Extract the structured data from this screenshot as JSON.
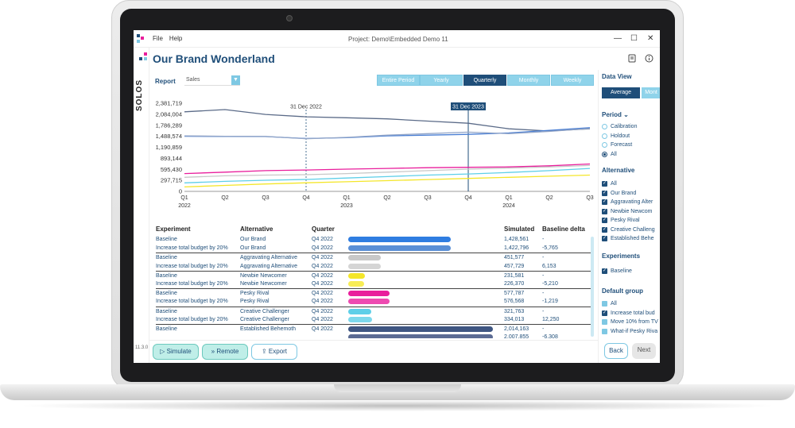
{
  "window": {
    "menu": [
      "File",
      "Help"
    ],
    "title": "Project: Demo\\Embedded Demo 11",
    "minimize": "—",
    "maximize": "☐",
    "close": "✕"
  },
  "brand": {
    "vertical_text": "SOLOS",
    "version": "11.3.0"
  },
  "page": {
    "title": "Our Brand Wonderland",
    "doc_icon": "document-icon",
    "info_icon": "info-icon"
  },
  "report": {
    "label": "Report",
    "value": "Sales"
  },
  "period_tabs": [
    {
      "label": "Entire Period",
      "active": false
    },
    {
      "label": "Yearly",
      "active": false
    },
    {
      "label": "Quarterly",
      "active": true
    },
    {
      "label": "Monthly",
      "active": false
    },
    {
      "label": "Weekly",
      "active": false
    }
  ],
  "chart_data": {
    "type": "line",
    "y_ticks": [
      "2,381,719",
      "2,084,004",
      "1,786,289",
      "1,488,574",
      "1,190,859",
      "893,144",
      "595,430",
      "297,715",
      "0"
    ],
    "ylim": [
      0,
      2381719
    ],
    "x": [
      "Q1",
      "Q2",
      "Q3",
      "Q4",
      "Q1",
      "Q2",
      "Q3",
      "Q4",
      "Q1",
      "Q2",
      "Q3"
    ],
    "x_years": [
      {
        "label": "2022",
        "index": 0
      },
      {
        "label": "2023",
        "index": 4
      },
      {
        "label": "2024",
        "index": 8
      }
    ],
    "markers": [
      {
        "label": "31 Dec 2022",
        "index": 3,
        "style": "dashed"
      },
      {
        "label": "31 Dec 2023",
        "index": 7,
        "style": "solid"
      }
    ],
    "series": [
      {
        "color": "#5b6b88",
        "values": [
          2150000,
          2210000,
          2080000,
          2014163,
          1990000,
          1960000,
          1900000,
          1840000,
          1690000,
          1630000,
          1690000
        ]
      },
      {
        "color": "#4a7fd4",
        "values": [
          1488574,
          1485000,
          1480000,
          1428561,
          1450000,
          1500000,
          1520000,
          1540000,
          1580000,
          1650000,
          1720000
        ]
      },
      {
        "color": "#93a6c8",
        "values": [
          1500000,
          1490000,
          1485000,
          1422796,
          1460000,
          1520000,
          1560000,
          1600000,
          1560000,
          1620000,
          1700000
        ]
      },
      {
        "color": "#e91e9c",
        "values": [
          480000,
          520000,
          560000,
          577787,
          600000,
          620000,
          640000,
          650000,
          660000,
          690000,
          740000
        ]
      },
      {
        "color": "#c8c8c8",
        "values": [
          380000,
          420000,
          440000,
          451577,
          480000,
          520000,
          560000,
          600000,
          630000,
          660000,
          700000
        ]
      },
      {
        "color": "#5ecfe8",
        "values": [
          230000,
          270000,
          300000,
          321763,
          360000,
          400000,
          440000,
          470000,
          510000,
          560000,
          620000
        ]
      },
      {
        "color": "#f4e62a",
        "values": [
          120000,
          160000,
          200000,
          231581,
          260000,
          290000,
          320000,
          350000,
          380000,
          410000,
          440000
        ]
      }
    ]
  },
  "table": {
    "headers": [
      "Experiment",
      "Alternative",
      "Quarter",
      "",
      "Simulated",
      "Baseline delta"
    ],
    "bar_max": 2100000,
    "rows": [
      {
        "experiment": "Baseline",
        "alternative": "Our Brand",
        "quarter": "Q4 2022",
        "simulated": "1,428,561",
        "value": 1428561,
        "delta": "-",
        "color": "#2f7de1",
        "sep": false
      },
      {
        "experiment": "Increase total budget by 20%",
        "alternative": "Our Brand",
        "quarter": "Q4 2022",
        "simulated": "1,422,796",
        "value": 1422796,
        "delta": "-5,765",
        "color": "#5a8fd6",
        "sep": false
      },
      {
        "experiment": "Baseline",
        "alternative": "Aggravating Alternative",
        "quarter": "Q4 2022",
        "simulated": "451,577",
        "value": 451577,
        "delta": "-",
        "color": "#c8c8c8",
        "sep": true
      },
      {
        "experiment": "Increase total budget by 20%",
        "alternative": "Aggravating Alternative",
        "quarter": "Q4 2022",
        "simulated": "457,729",
        "value": 457729,
        "delta": "6,153",
        "color": "#d5d5d5",
        "sep": false
      },
      {
        "experiment": "Baseline",
        "alternative": "Newbie Newcomer",
        "quarter": "Q4 2022",
        "simulated": "231,581",
        "value": 231581,
        "delta": "-",
        "color": "#f4e62a",
        "sep": true
      },
      {
        "experiment": "Increase total budget by 20%",
        "alternative": "Newbie Newcomer",
        "quarter": "Q4 2022",
        "simulated": "226,370",
        "value": 226370,
        "delta": "-5,210",
        "color": "#f7ed55",
        "sep": false
      },
      {
        "experiment": "Baseline",
        "alternative": "Pesky Rival",
        "quarter": "Q4 2022",
        "simulated": "577,787",
        "value": 577787,
        "delta": "-",
        "color": "#e91e9c",
        "sep": true
      },
      {
        "experiment": "Increase total budget by 20%",
        "alternative": "Pesky Rival",
        "quarter": "Q4 2022",
        "simulated": "576,568",
        "value": 576568,
        "delta": "-1,219",
        "color": "#ee4bb1",
        "sep": false
      },
      {
        "experiment": "Baseline",
        "alternative": "Creative Challenger",
        "quarter": "Q4 2022",
        "simulated": "321,763",
        "value": 321763,
        "delta": "-",
        "color": "#5ecfe8",
        "sep": true
      },
      {
        "experiment": "Increase total budget by 20%",
        "alternative": "Creative Challenger",
        "quarter": "Q4 2022",
        "simulated": "334,013",
        "value": 334013,
        "delta": "12,250",
        "color": "#7dd8ec",
        "sep": false
      },
      {
        "experiment": "Baseline",
        "alternative": "Established Behemoth",
        "quarter": "Q4 2022",
        "simulated": "2,014,163",
        "value": 2014163,
        "delta": "-",
        "color": "#3f5682",
        "sep": true
      },
      {
        "experiment": "",
        "alternative": "",
        "quarter": "",
        "simulated": "2,007,855",
        "value": 2007855,
        "delta": "-6,308",
        "color": "#5b6b93",
        "sep": false
      }
    ]
  },
  "bottom_buttons": {
    "simulate": "Simulate",
    "remote": "Remote",
    "export": "Export",
    "back": "Back",
    "next": "Next"
  },
  "sidebar": {
    "data_view": {
      "title": "Data View",
      "average": "Average",
      "monthly": "Mont"
    },
    "period": {
      "title": "Period",
      "options": [
        "Calibration",
        "Holdout",
        "Forecast",
        "All"
      ],
      "selected": "All"
    },
    "alternative": {
      "title": "Alternative",
      "items": [
        "All",
        "Our Brand",
        "Aggravating Alter",
        "Newbie Newcom",
        "Pesky Rival",
        "Creative Challeng",
        "Established Behe"
      ]
    },
    "experiments": {
      "title": "Experiments",
      "items": [
        "Baseline"
      ]
    },
    "default_group": {
      "title": "Default group",
      "items": [
        "All",
        "Increase total bud",
        "Move 10% from TV",
        "What-if Pesky Riva"
      ],
      "checked": [
        false,
        true,
        false,
        false
      ]
    }
  }
}
